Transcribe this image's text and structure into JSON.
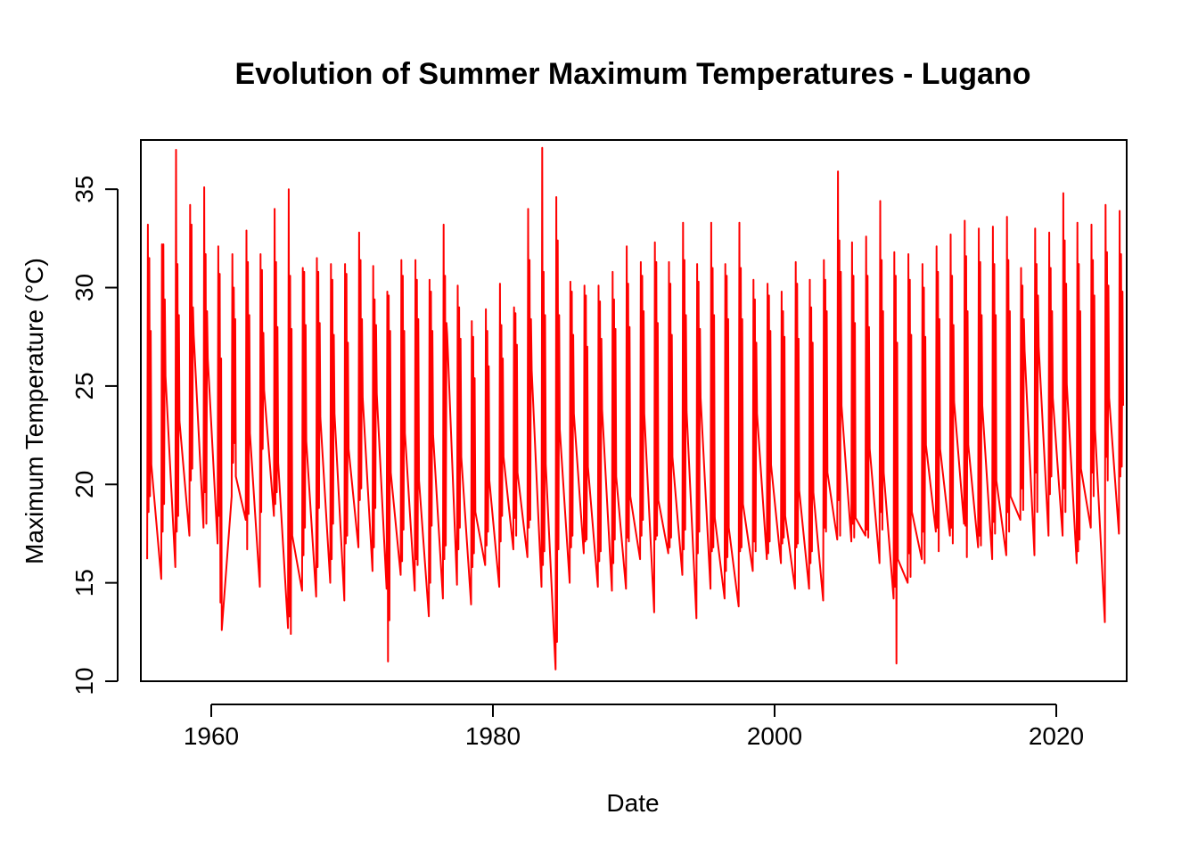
{
  "chart_data": {
    "type": "line",
    "title": "Evolution of Summer Maximum Temperatures - Lugano",
    "xlabel": "Date",
    "ylabel": "Maximum Temperature (°C)",
    "xlim": [
      1955,
      2025
    ],
    "ylim": [
      10,
      37.5
    ],
    "x_ticks": [
      1960,
      1980,
      2000,
      2020
    ],
    "x_tick_labels": [
      "1960",
      "1980",
      "2000",
      "2020"
    ],
    "y_ticks": [
      10,
      15,
      20,
      25,
      30,
      35
    ],
    "y_tick_labels": [
      "10",
      "15",
      "20",
      "25",
      "30",
      "35"
    ],
    "grid": false,
    "legend": "none",
    "series": [
      {
        "color": "#ff0000",
        "x": [
          1955.45,
          1955.5,
          1955.55,
          1955.6,
          1955.65,
          1955.7,
          1955.75,
          1956.45,
          1956.5,
          1956.55,
          1956.6,
          1956.65,
          1956.7,
          1956.75,
          1957.45,
          1957.5,
          1957.55,
          1957.6,
          1957.65,
          1957.7,
          1957.75,
          1958.45,
          1958.5,
          1958.55,
          1958.6,
          1958.65,
          1958.7,
          1958.75,
          1959.45,
          1959.5,
          1959.55,
          1959.6,
          1959.65,
          1959.7,
          1959.75,
          1960.45,
          1960.5,
          1960.55,
          1960.6,
          1960.65,
          1960.7,
          1960.75,
          1961.45,
          1961.5,
          1961.55,
          1961.6,
          1961.65,
          1961.7,
          1961.75,
          1962.45,
          1962.5,
          1962.55,
          1962.6,
          1962.65,
          1962.7,
          1962.75,
          1963.45,
          1963.5,
          1963.55,
          1963.6,
          1963.65,
          1963.7,
          1963.75,
          1964.45,
          1964.5,
          1964.55,
          1964.6,
          1964.65,
          1964.7,
          1964.75,
          1965.45,
          1965.5,
          1965.55,
          1965.6,
          1965.65,
          1965.7,
          1965.75,
          1966.45,
          1966.5,
          1966.55,
          1966.6,
          1966.65,
          1966.7,
          1966.75,
          1967.45,
          1967.5,
          1967.55,
          1967.6,
          1967.65,
          1967.7,
          1967.75,
          1968.45,
          1968.5,
          1968.55,
          1968.6,
          1968.65,
          1968.7,
          1968.75,
          1969.45,
          1969.5,
          1969.55,
          1969.6,
          1969.65,
          1969.7,
          1969.75,
          1970.45,
          1970.5,
          1970.55,
          1970.6,
          1970.65,
          1970.7,
          1970.75,
          1971.45,
          1971.5,
          1971.55,
          1971.6,
          1971.65,
          1971.7,
          1971.75,
          1972.45,
          1972.5,
          1972.55,
          1972.6,
          1972.65,
          1972.7,
          1972.75,
          1973.45,
          1973.5,
          1973.55,
          1973.6,
          1973.65,
          1973.7,
          1973.75,
          1974.45,
          1974.5,
          1974.55,
          1974.6,
          1974.65,
          1974.7,
          1974.75,
          1975.45,
          1975.5,
          1975.55,
          1975.6,
          1975.65,
          1975.7,
          1975.75,
          1976.45,
          1976.5,
          1976.55,
          1976.6,
          1976.65,
          1976.7,
          1976.75,
          1977.45,
          1977.5,
          1977.55,
          1977.6,
          1977.65,
          1977.7,
          1977.75,
          1978.45,
          1978.5,
          1978.55,
          1978.6,
          1978.65,
          1978.7,
          1978.75,
          1979.45,
          1979.5,
          1979.55,
          1979.6,
          1979.65,
          1979.7,
          1979.75,
          1980.45,
          1980.5,
          1980.55,
          1980.6,
          1980.65,
          1980.7,
          1980.75,
          1981.45,
          1981.5,
          1981.55,
          1981.6,
          1981.65,
          1981.7,
          1981.75,
          1982.45,
          1982.5,
          1982.55,
          1982.6,
          1982.65,
          1982.7,
          1982.75,
          1983.45,
          1983.5,
          1983.55,
          1983.6,
          1983.65,
          1983.7,
          1983.75,
          1984.45,
          1984.5,
          1984.55,
          1984.6,
          1984.65,
          1984.7,
          1984.75,
          1985.45,
          1985.5,
          1985.55,
          1985.6,
          1985.65,
          1985.7,
          1985.75,
          1986.45,
          1986.5,
          1986.55,
          1986.6,
          1986.65,
          1986.7,
          1986.75,
          1987.45,
          1987.5,
          1987.55,
          1987.6,
          1987.65,
          1987.7,
          1987.75,
          1988.45,
          1988.5,
          1988.55,
          1988.6,
          1988.65,
          1988.7,
          1988.75,
          1989.45,
          1989.5,
          1989.55,
          1989.6,
          1989.65,
          1989.7,
          1989.75,
          1990.45,
          1990.5,
          1990.55,
          1990.6,
          1990.65,
          1990.7,
          1990.75,
          1991.45,
          1991.5,
          1991.55,
          1991.6,
          1991.65,
          1991.7,
          1991.75,
          1992.45,
          1992.5,
          1992.55,
          1992.6,
          1992.65,
          1992.7,
          1992.75,
          1993.45,
          1993.5,
          1993.55,
          1993.6,
          1993.65,
          1993.7,
          1993.75,
          1994.45,
          1994.5,
          1994.55,
          1994.6,
          1994.65,
          1994.7,
          1994.75,
          1995.45,
          1995.5,
          1995.55,
          1995.6,
          1995.65,
          1995.7,
          1995.75,
          1996.45,
          1996.5,
          1996.55,
          1996.6,
          1996.65,
          1996.7,
          1996.75,
          1997.45,
          1997.5,
          1997.55,
          1997.6,
          1997.65,
          1997.7,
          1997.75,
          1998.45,
          1998.5,
          1998.55,
          1998.6,
          1998.65,
          1998.7,
          1998.75,
          1999.45,
          1999.5,
          1999.55,
          1999.6,
          1999.65,
          1999.7,
          1999.75,
          2000.45,
          2000.5,
          2000.55,
          2000.6,
          2000.65,
          2000.7,
          2000.75,
          2001.45,
          2001.5,
          2001.55,
          2001.6,
          2001.65,
          2001.7,
          2001.75,
          2002.45,
          2002.5,
          2002.55,
          2002.6,
          2002.65,
          2002.7,
          2002.75,
          2003.45,
          2003.5,
          2003.55,
          2003.6,
          2003.65,
          2003.7,
          2003.75,
          2004.45,
          2004.5,
          2004.55,
          2004.6,
          2004.65,
          2004.7,
          2004.75,
          2005.45,
          2005.5,
          2005.55,
          2005.6,
          2005.65,
          2005.7,
          2005.75,
          2006.45,
          2006.5,
          2006.55,
          2006.6,
          2006.65,
          2006.7,
          2006.75,
          2007.45,
          2007.5,
          2007.55,
          2007.6,
          2007.65,
          2007.7,
          2007.75,
          2008.45,
          2008.5,
          2008.55,
          2008.6,
          2008.65,
          2008.7,
          2008.75,
          2009.45,
          2009.5,
          2009.55,
          2009.6,
          2009.65,
          2009.7,
          2009.75,
          2010.45,
          2010.5,
          2010.55,
          2010.6,
          2010.65,
          2010.7,
          2010.75,
          2011.45,
          2011.5,
          2011.55,
          2011.6,
          2011.65,
          2011.7,
          2011.75,
          2012.45,
          2012.5,
          2012.55,
          2012.6,
          2012.65,
          2012.7,
          2012.75,
          2013.45,
          2013.5,
          2013.55,
          2013.6,
          2013.65,
          2013.7,
          2013.75,
          2014.45,
          2014.5,
          2014.55,
          2014.6,
          2014.65,
          2014.7,
          2014.75,
          2015.45,
          2015.5,
          2015.55,
          2015.6,
          2015.65,
          2015.7,
          2015.75,
          2016.45,
          2016.5,
          2016.55,
          2016.6,
          2016.65,
          2016.7,
          2016.75,
          2017.45,
          2017.5,
          2017.55,
          2017.6,
          2017.65,
          2017.7,
          2017.75,
          2018.45,
          2018.5,
          2018.55,
          2018.6,
          2018.65,
          2018.7,
          2018.75,
          2019.45,
          2019.5,
          2019.55,
          2019.6,
          2019.65,
          2019.7,
          2019.75,
          2020.45,
          2020.5,
          2020.55,
          2020.6,
          2020.65,
          2020.7,
          2020.75,
          2021.45,
          2021.5,
          2021.55,
          2021.6,
          2021.65,
          2021.7,
          2021.75,
          2022.45,
          2022.5,
          2022.55,
          2022.6,
          2022.65,
          2022.7,
          2022.75,
          2023.45,
          2023.5,
          2023.55,
          2023.6,
          2023.65,
          2023.7,
          2023.75,
          2024.45,
          2024.5,
          2024.55,
          2024.6,
          2024.65,
          2024.7,
          2024.75
        ],
        "y": [
          16.2,
          33.2,
          18.6,
          31.5,
          19.4,
          27.8,
          21.0,
          15.2,
          32.2,
          17.6,
          32.2,
          19.0,
          29.4,
          25.5,
          15.8,
          37.0,
          17.6,
          31.2,
          18.4,
          28.6,
          23.2,
          17.4,
          34.2,
          20.2,
          33.2,
          20.8,
          29.0,
          27.6,
          17.8,
          35.1,
          19.6,
          31.7,
          18.0,
          28.8,
          26.4,
          17.0,
          32.1,
          18.4,
          30.7,
          14.0,
          26.4,
          12.6,
          19.4,
          31.7,
          21.1,
          30.0,
          22.1,
          28.4,
          20.4,
          18.2,
          32.9,
          16.7,
          31.3,
          18.5,
          28.6,
          22.6,
          14.8,
          31.7,
          18.6,
          30.9,
          21.8,
          27.7,
          24.8,
          18.4,
          34.0,
          19.0,
          31.3,
          19.6,
          28.0,
          21.1,
          12.7,
          35.0,
          13.3,
          30.6,
          12.4,
          27.9,
          17.4,
          14.6,
          31.0,
          16.4,
          30.8,
          17.8,
          28.1,
          22.2,
          14.3,
          31.5,
          15.8,
          30.8,
          18.8,
          28.2,
          23.4,
          15.0,
          31.2,
          16.2,
          30.4,
          18.0,
          27.6,
          23.6,
          14.1,
          31.2,
          17.0,
          30.7,
          17.4,
          27.2,
          21.8,
          16.8,
          32.8,
          19.2,
          31.4,
          19.8,
          28.4,
          24.4,
          15.6,
          31.1,
          16.8,
          29.4,
          18.8,
          28.1,
          24.6,
          14.7,
          29.8,
          11.0,
          29.6,
          13.1,
          27.8,
          20.6,
          15.4,
          31.4,
          16.1,
          30.6,
          17.7,
          27.8,
          22.6,
          14.6,
          31.4,
          16.2,
          30.4,
          15.9,
          28.4,
          20.2,
          13.3,
          30.4,
          15.0,
          29.8,
          17.9,
          27.8,
          22.5,
          14.2,
          33.2,
          16.2,
          30.6,
          16.9,
          28.2,
          27.6,
          14.9,
          30.1,
          16.7,
          29.0,
          17.8,
          27.4,
          21.4,
          13.9,
          28.3,
          15.8,
          27.5,
          16.5,
          25.4,
          18.6,
          15.9,
          28.9,
          16.9,
          27.8,
          17.6,
          26.0,
          20.2,
          14.8,
          30.2,
          17.1,
          28.1,
          18.4,
          26.4,
          21.4,
          16.7,
          29.0,
          18.3,
          28.7,
          17.4,
          27.1,
          20.6,
          16.3,
          34.0,
          17.8,
          31.4,
          18.2,
          28.4,
          25.8,
          14.8,
          37.1,
          15.9,
          30.8,
          16.6,
          28.6,
          21.0,
          10.6,
          34.6,
          12.0,
          32.4,
          16.7,
          28.6,
          22.8,
          15.0,
          30.3,
          16.8,
          29.8,
          17.4,
          27.6,
          23.6,
          16.5,
          30.1,
          17.1,
          29.6,
          17.2,
          27.0,
          20.9,
          14.8,
          30.1,
          16.1,
          29.3,
          16.6,
          27.4,
          23.8,
          14.6,
          30.8,
          16.0,
          29.4,
          17.2,
          27.9,
          20.4,
          14.7,
          32.1,
          17.3,
          30.2,
          17.1,
          28.0,
          19.4,
          16.2,
          31.3,
          17.4,
          30.6,
          18.2,
          28.8,
          23.6,
          13.5,
          32.3,
          17.2,
          31.3,
          17.4,
          28.2,
          19.2,
          16.5,
          31.3,
          16.8,
          30.2,
          17.3,
          27.6,
          21.4,
          15.4,
          33.3,
          16.7,
          31.4,
          17.7,
          28.6,
          23.7,
          13.2,
          31.2,
          16.5,
          30.3,
          17.6,
          27.9,
          24.4,
          14.7,
          33.3,
          16.6,
          31.0,
          16.8,
          28.6,
          18.3,
          14.2,
          31.2,
          15.6,
          30.6,
          16.3,
          28.4,
          17.8,
          13.8,
          33.3,
          16.6,
          31.0,
          16.8,
          28.4,
          19.0,
          15.6,
          30.4,
          17.1,
          29.4,
          16.6,
          27.2,
          23.6,
          16.2,
          30.2,
          16.5,
          29.6,
          17.1,
          27.8,
          21.0,
          16.0,
          29.8,
          17.0,
          28.8,
          17.3,
          27.5,
          18.4,
          14.7,
          31.3,
          16.8,
          30.2,
          17.0,
          27.4,
          19.7,
          14.7,
          30.4,
          16.0,
          29.0,
          16.6,
          27.2,
          19.6,
          14.1,
          31.4,
          17.8,
          30.4,
          17.6,
          28.8,
          20.6,
          17.2,
          35.9,
          19.2,
          32.4,
          17.4,
          30.8,
          24.0,
          17.1,
          32.3,
          18.0,
          30.6,
          17.3,
          28.2,
          18.3,
          17.4,
          32.6,
          17.7,
          30.6,
          17.3,
          28.0,
          21.8,
          16.0,
          34.4,
          18.6,
          31.4,
          17.7,
          28.8,
          20.6,
          14.2,
          31.8,
          14.8,
          30.6,
          10.9,
          27.2,
          16.2,
          15.0,
          31.7,
          16.5,
          30.4,
          15.3,
          27.6,
          18.6,
          16.2,
          31.2,
          17.6,
          30.0,
          16.0,
          27.5,
          22.0,
          17.6,
          32.1,
          17.8,
          30.8,
          16.6,
          28.4,
          21.8,
          17.4,
          32.7,
          17.8,
          30.6,
          17.0,
          28.1,
          24.2,
          18.0,
          33.4,
          17.9,
          31.6,
          16.3,
          28.8,
          22.0,
          16.8,
          33.0,
          17.4,
          31.3,
          16.9,
          28.6,
          24.0,
          16.2,
          33.1,
          18.1,
          31.2,
          17.5,
          28.6,
          20.2,
          16.4,
          33.6,
          18.6,
          31.4,
          17.6,
          28.8,
          19.4,
          18.2,
          31.0,
          19.8,
          30.1,
          18.7,
          28.4,
          26.8,
          16.4,
          33.0,
          20.6,
          31.2,
          18.6,
          29.6,
          27.0,
          17.4,
          32.8,
          19.5,
          31.0,
          20.4,
          28.8,
          24.4,
          17.4,
          34.8,
          19.8,
          32.4,
          18.6,
          30.2,
          25.1,
          16.0,
          33.3,
          16.6,
          31.2,
          17.2,
          28.8,
          20.8,
          17.8,
          33.2,
          20.6,
          31.4,
          19.4,
          29.6,
          22.8,
          13.0,
          34.2,
          21.4,
          31.8,
          20.2,
          30.1,
          24.4,
          17.5,
          33.9,
          20.4,
          31.7,
          20.9,
          29.8,
          24.0
        ]
      }
    ]
  }
}
